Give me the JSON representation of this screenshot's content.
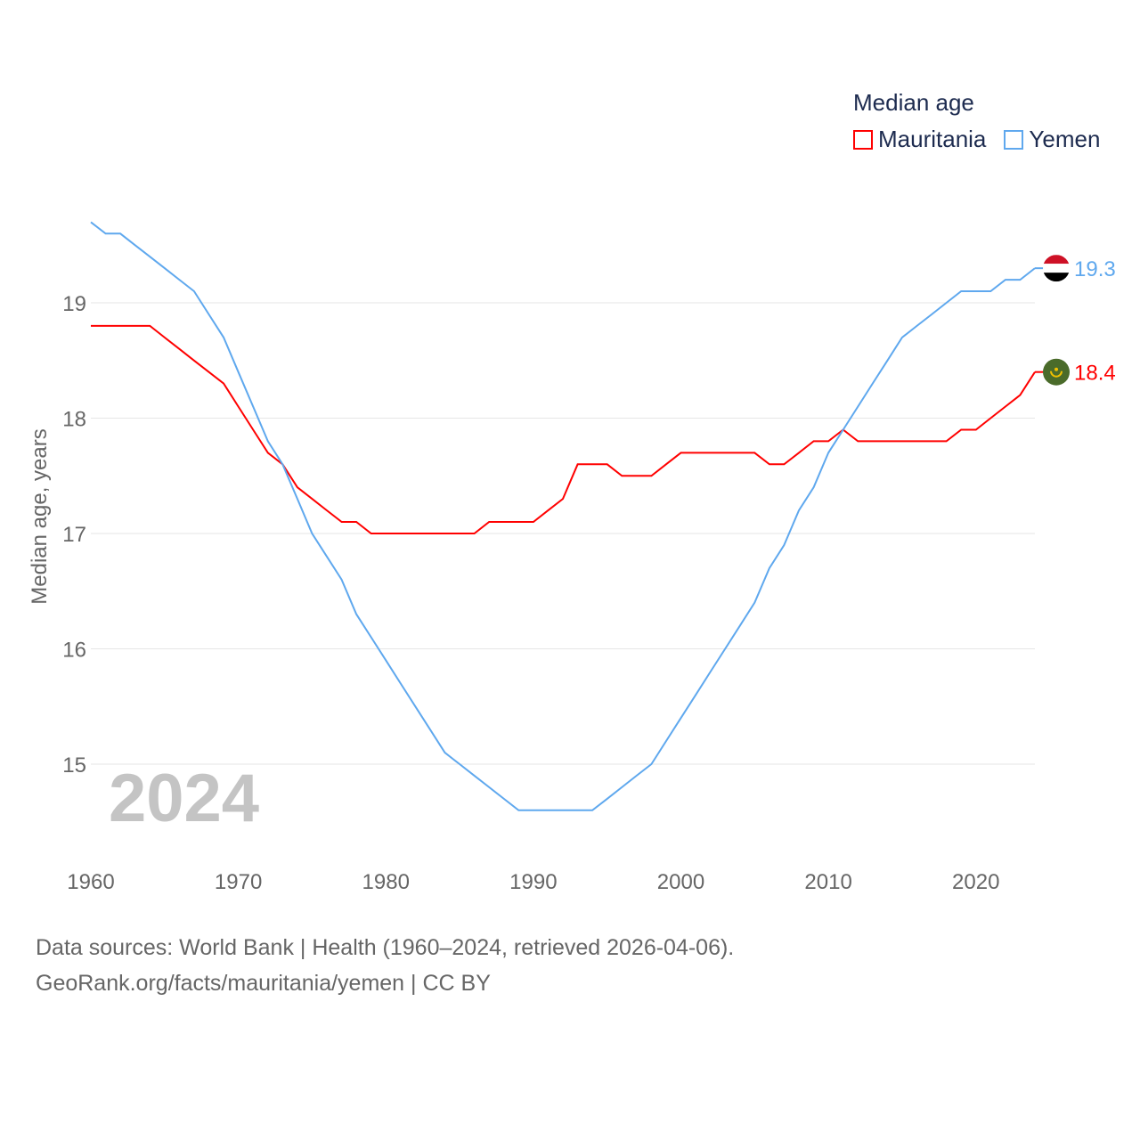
{
  "chart_data": {
    "type": "line",
    "title": "",
    "legend_title": "Median age",
    "legend_placement": "top-right",
    "xlabel": "",
    "ylabel": "Median age, years",
    "xlim": [
      1960,
      2024
    ],
    "ylim": [
      14.3,
      19.8
    ],
    "x_ticks": [
      "1960",
      "1970",
      "1980",
      "1990",
      "2000",
      "2010",
      "2020"
    ],
    "y_ticks": [
      "15",
      "16",
      "17",
      "18",
      "19"
    ],
    "grid": true,
    "year_label": "2024",
    "x_start": 1960,
    "series": [
      {
        "name": "Mauritania",
        "color": "#ff0000",
        "end_label": "18.4",
        "values": [
          18.8,
          18.8,
          18.8,
          18.8,
          18.8,
          18.7,
          18.6,
          18.5,
          18.4,
          18.3,
          18.1,
          17.9,
          17.7,
          17.6,
          17.4,
          17.3,
          17.2,
          17.1,
          17.1,
          17.0,
          17.0,
          17.0,
          17.0,
          17.0,
          17.0,
          17.0,
          17.0,
          17.1,
          17.1,
          17.1,
          17.1,
          17.2,
          17.3,
          17.6,
          17.6,
          17.6,
          17.5,
          17.5,
          17.5,
          17.6,
          17.7,
          17.7,
          17.7,
          17.7,
          17.7,
          17.7,
          17.6,
          17.6,
          17.7,
          17.8,
          17.8,
          17.9,
          17.8,
          17.8,
          17.8,
          17.8,
          17.8,
          17.8,
          17.8,
          17.9,
          17.9,
          18.0,
          18.1,
          18.2,
          18.4
        ]
      },
      {
        "name": "Yemen",
        "color": "#5fa8ee",
        "end_label": "19.3",
        "values": [
          19.7,
          19.6,
          19.6,
          19.5,
          19.4,
          19.3,
          19.2,
          19.1,
          18.9,
          18.7,
          18.4,
          18.1,
          17.8,
          17.6,
          17.3,
          17.0,
          16.8,
          16.6,
          16.3,
          16.1,
          15.9,
          15.7,
          15.5,
          15.3,
          15.1,
          15.0,
          14.9,
          14.8,
          14.7,
          14.6,
          14.6,
          14.6,
          14.6,
          14.6,
          14.6,
          14.7,
          14.8,
          14.9,
          15.0,
          15.2,
          15.4,
          15.6,
          15.8,
          16.0,
          16.2,
          16.4,
          16.7,
          16.9,
          17.2,
          17.4,
          17.7,
          17.9,
          18.1,
          18.3,
          18.5,
          18.7,
          18.8,
          18.9,
          19.0,
          19.1,
          19.1,
          19.1,
          19.2,
          19.2,
          19.3
        ]
      }
    ]
  },
  "footer": {
    "sources": "Data sources: World Bank | Health (1960–2024, retrieved 2026-04-06).",
    "credit": "GeoRank.org/facts/mauritania/yemen | CC BY"
  }
}
